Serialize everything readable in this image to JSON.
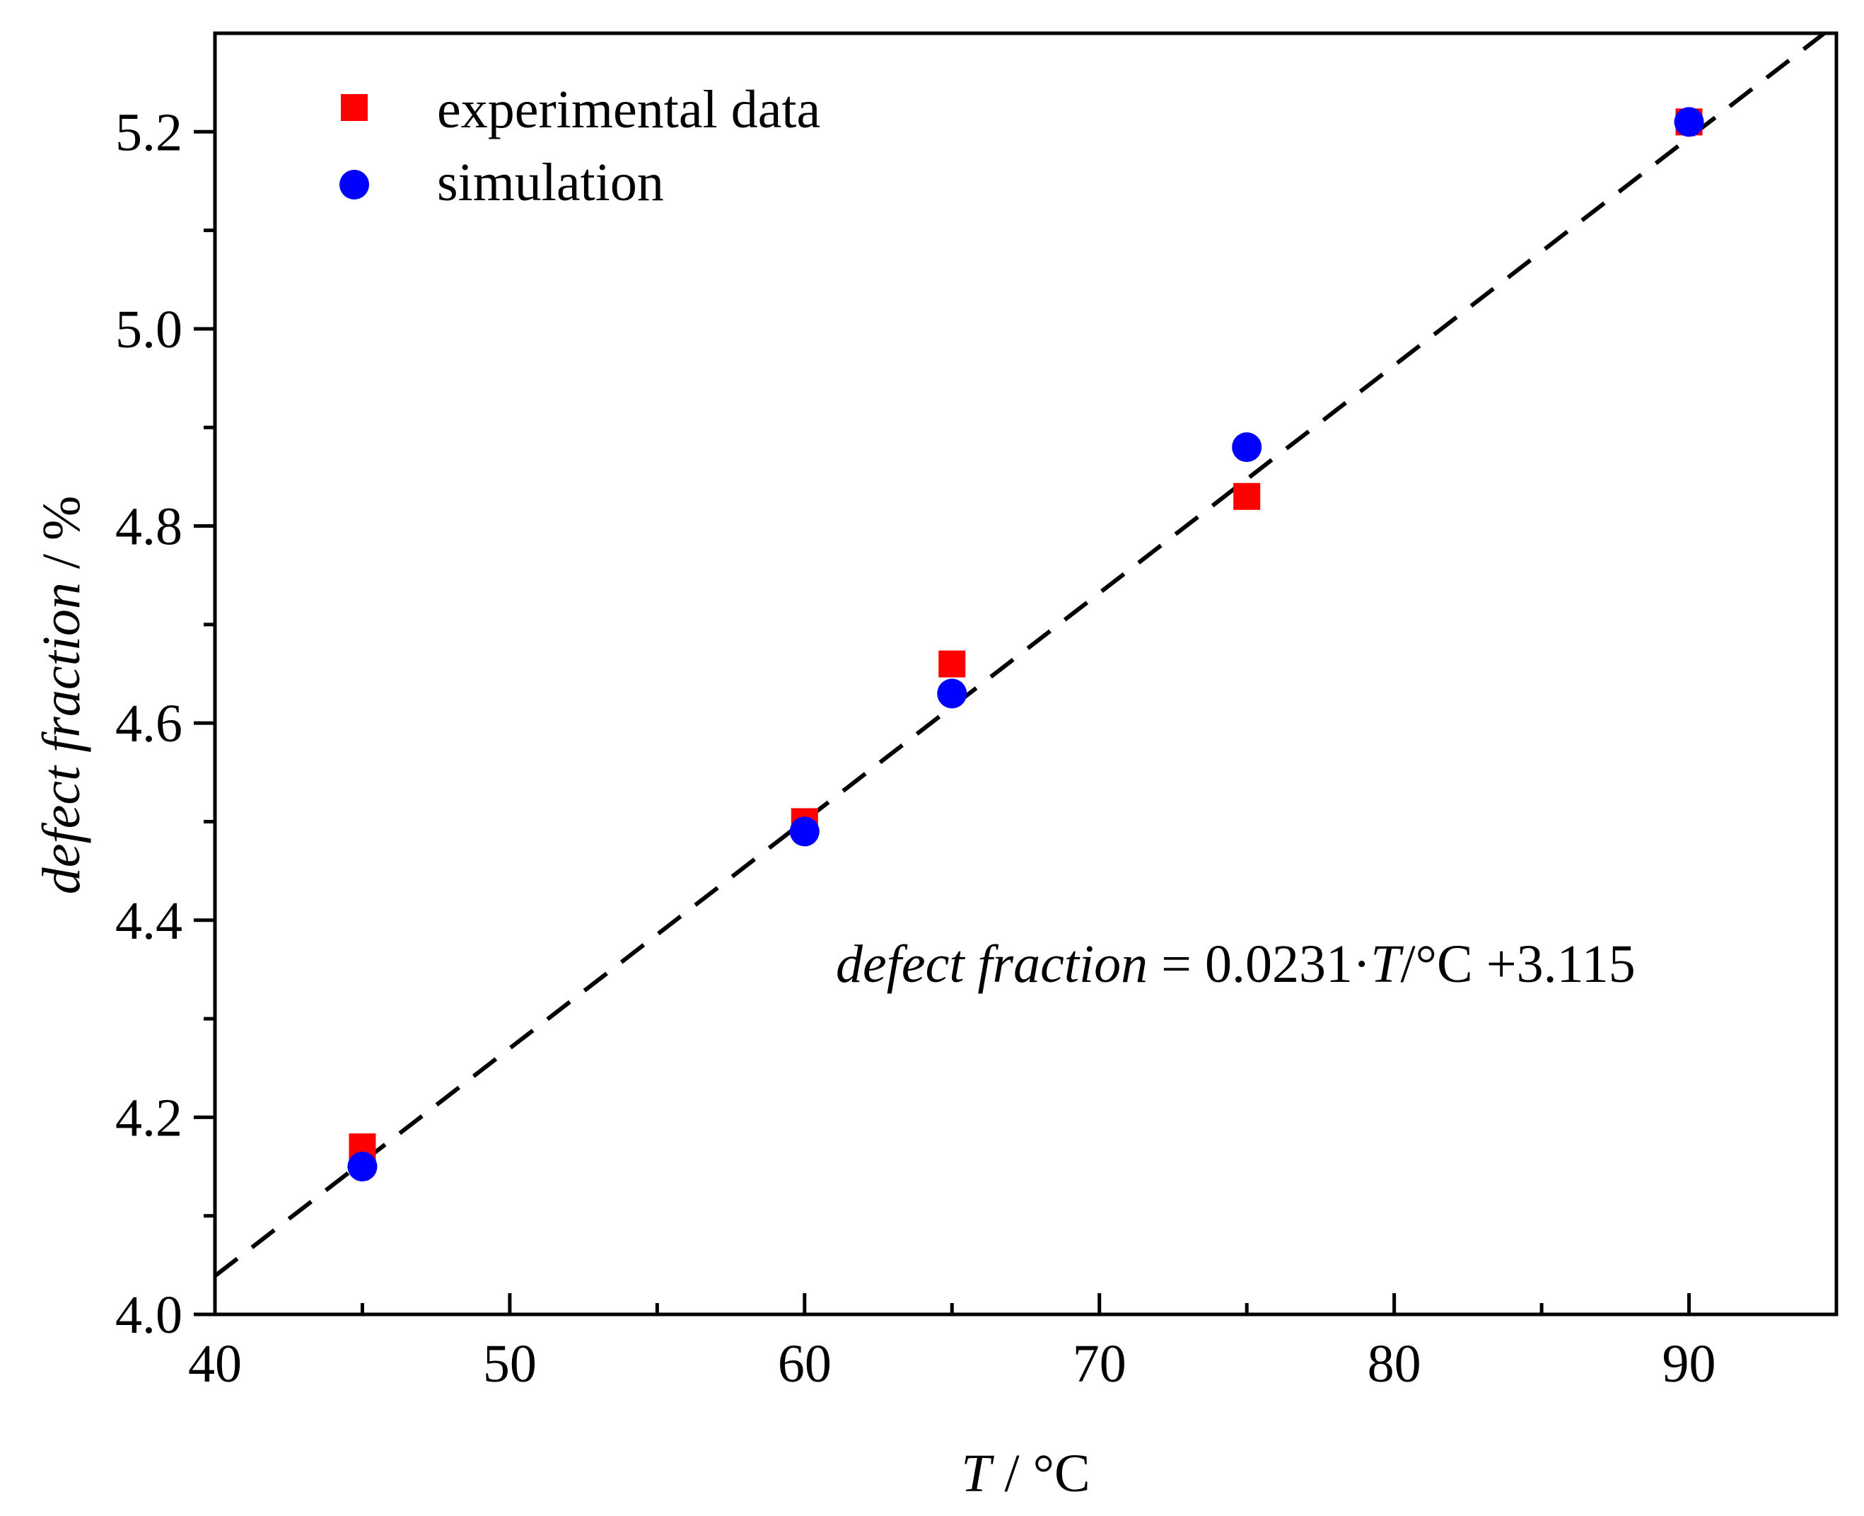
{
  "chart_data": {
    "type": "scatter",
    "title": "",
    "xlabel": {
      "var": "T",
      "unit": " / °C"
    },
    "ylabel": {
      "var": "defect fraction",
      "unit": " / %"
    },
    "xlim": [
      40,
      95
    ],
    "ylim": [
      4.0,
      5.3
    ],
    "x_major_ticks": [
      40,
      50,
      60,
      70,
      80,
      90
    ],
    "x_minor_ticks": [
      45,
      55,
      65,
      75,
      85
    ],
    "y_major_ticks": [
      4.0,
      4.2,
      4.4,
      4.6,
      4.8,
      5.0,
      5.2
    ],
    "y_minor_ticks": [
      4.1,
      4.3,
      4.5,
      4.7,
      4.9,
      5.1
    ],
    "x_tick_labels": [
      "40",
      "50",
      "60",
      "70",
      "80",
      "90"
    ],
    "y_tick_labels": [
      "4.0",
      "4.2",
      "4.4",
      "4.6",
      "4.8",
      "5.0",
      "5.2"
    ],
    "grid": false,
    "legend_position": "top-left",
    "series": [
      {
        "name": "experimental data",
        "marker": "square",
        "color": "#ff0000",
        "x": [
          45,
          60,
          65,
          75,
          90
        ],
        "y": [
          4.17,
          4.5,
          4.66,
          4.83,
          5.21
        ]
      },
      {
        "name": "simulation",
        "marker": "circle",
        "color": "#0000ff",
        "x": [
          45,
          60,
          65,
          75,
          90
        ],
        "y": [
          4.15,
          4.49,
          4.63,
          4.88,
          5.21
        ]
      }
    ],
    "fit_line": {
      "slope": 0.0231,
      "intercept": 3.115,
      "style": "dashed",
      "color": "#000000",
      "x_range": [
        40,
        95
      ]
    },
    "annotation": {
      "var": "defect fraction",
      "eq_part1": " = 0.0231·",
      "eq_var2": "T",
      "eq_part2": "/°C +3.115"
    }
  }
}
